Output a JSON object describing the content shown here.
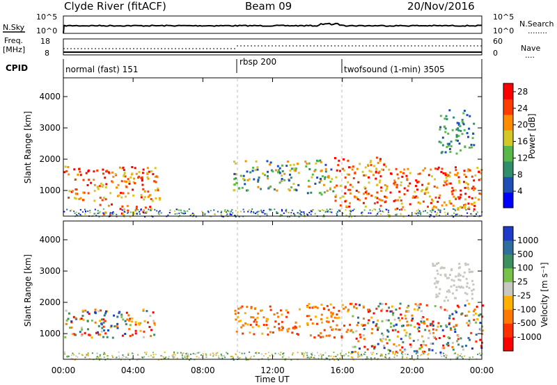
{
  "header": {
    "station": "Clyde River (fitACF)",
    "beam": "Beam 09",
    "date": "20/Nov/2016"
  },
  "noise_panel": {
    "left_label": "N.Sky",
    "left_ticks": [
      "10^5",
      "10^0"
    ],
    "right_ticks": [
      "10^5",
      "10^0"
    ],
    "right_label": "N.Search",
    "right_legend": "........"
  },
  "freq_panel": {
    "left_label_1": "Freq.",
    "left_label_2": "[MHz]",
    "left_ticks": [
      "18",
      "8"
    ],
    "right_ticks": [
      "60",
      "0"
    ],
    "right_label": "Nave",
    "right_legend": "...."
  },
  "cpid": {
    "label": "CPID",
    "modes": [
      {
        "name": "normal (fast) 151",
        "start_hour": 0
      },
      {
        "name": "rbsp 200",
        "start_hour": 10
      },
      {
        "name": "twofsound (1-min) 3505",
        "start_hour": 16
      }
    ]
  },
  "chart_data": [
    {
      "type": "heatmap",
      "ylabel": "Slant Range [km]",
      "yticks": [
        "1000",
        "2000",
        "3000",
        "4000"
      ],
      "xlim": [
        0,
        24
      ],
      "ylim": [
        180,
        4600
      ],
      "colorbar": {
        "label": "Power [dB]",
        "ticks": [
          "4",
          "8",
          "12",
          "16",
          "20",
          "24",
          "28"
        ],
        "range": [
          0,
          30
        ],
        "colors": [
          "#0000ff",
          "#1e4fb4",
          "#2f8f6a",
          "#58b84a",
          "#d4c828",
          "#ff8c00",
          "#ff3c00",
          "#ff0000"
        ]
      },
      "regions": [
        {
          "t0": 0.0,
          "t1": 5.5,
          "r0": 700,
          "r1": 1800,
          "level": "high"
        },
        {
          "t0": 2.0,
          "t1": 5.0,
          "r0": 250,
          "r1": 600,
          "level": "high"
        },
        {
          "t0": 9.7,
          "t1": 13.5,
          "r0": 1000,
          "r1": 2000,
          "level": "mid"
        },
        {
          "t0": 13.8,
          "t1": 15.5,
          "r0": 900,
          "r1": 2000,
          "level": "mid"
        },
        {
          "t0": 15.5,
          "t1": 18.5,
          "r0": 500,
          "r1": 2100,
          "level": "high"
        },
        {
          "t0": 18.5,
          "t1": 24.0,
          "r0": 400,
          "r1": 1800,
          "level": "high"
        },
        {
          "t0": 21.5,
          "t1": 23.5,
          "r0": 2200,
          "r1": 3600,
          "level": "low"
        }
      ]
    },
    {
      "type": "heatmap",
      "ylabel": "Slant Range [km]",
      "yticks": [
        "1000",
        "2000",
        "3000",
        "4000"
      ],
      "xlim": [
        0,
        24
      ],
      "ylim": [
        180,
        4600
      ],
      "colorbar": {
        "label": "Velocity [m s⁻¹]",
        "ticks": [
          "1000",
          "500",
          "100",
          "25",
          "-25",
          "-100",
          "-500",
          "-1000"
        ],
        "colors": [
          "#1e3cc8",
          "#2f6fa0",
          "#3b8f60",
          "#79c24a",
          "#c8c8c0",
          "#ffb000",
          "#ff7800",
          "#ff3000",
          "#ff0000"
        ]
      },
      "regions": [
        {
          "t0": 0.0,
          "t1": 5.5,
          "r0": 900,
          "r1": 1800,
          "level": "mixed"
        },
        {
          "t0": 9.8,
          "t1": 13.5,
          "r0": 1000,
          "r1": 1900,
          "level": "neg"
        },
        {
          "t0": 13.8,
          "t1": 16.5,
          "r0": 900,
          "r1": 2000,
          "level": "neg"
        },
        {
          "t0": 16.5,
          "t1": 24.0,
          "r0": 400,
          "r1": 2000,
          "level": "mixed"
        },
        {
          "t0": 21.0,
          "t1": 23.5,
          "r0": 2000,
          "r1": 3300,
          "level": "grey"
        }
      ]
    }
  ],
  "xaxis": {
    "ticks": [
      "00:00",
      "04:00",
      "08:00",
      "12:00",
      "16:00",
      "20:00",
      "00:00"
    ],
    "label": "Time UT"
  }
}
